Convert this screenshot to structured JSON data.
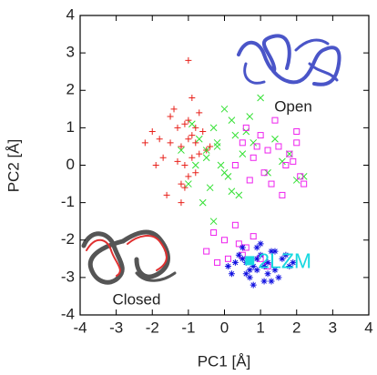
{
  "chart_data": {
    "type": "scatter",
    "xlabel": "PC1 [Å]",
    "ylabel": "PC2 [Å]",
    "xlim": [
      -4,
      4
    ],
    "ylim": [
      -4,
      4
    ],
    "xticks": [
      -4,
      -3,
      -2,
      -1,
      0,
      1,
      2,
      3,
      4
    ],
    "yticks": [
      -4,
      -3,
      -2,
      -1,
      0,
      1,
      2,
      3,
      4
    ],
    "series": [
      {
        "color": "#e8201a",
        "marker": "plus",
        "x": [
          -1.2,
          -0.9,
          -1.0,
          -0.7,
          -1.5,
          -1.3,
          -0.8,
          -1.1,
          -0.6,
          -1.4,
          -1.7,
          -0.9,
          -1.2,
          -1.0,
          -0.5,
          -1.8,
          -1.6,
          -0.8,
          -1.1,
          -1.3,
          -0.7,
          -1.0,
          -2.0,
          -1.9,
          -0.4,
          -1.2,
          -0.9,
          -1.0,
          -1.5,
          -1.1,
          -0.8,
          -2.2
        ],
        "values": [
          0.5,
          0.8,
          1.2,
          0.3,
          0.6,
          1.0,
          -0.2,
          0.0,
          0.9,
          1.5,
          0.2,
          1.8,
          -0.5,
          2.8,
          0.4,
          0.7,
          -0.8,
          0.6,
          1.1,
          0.1,
          1.4,
          -0.3,
          0.9,
          0.0,
          0.5,
          -1.0,
          0.2,
          0.7,
          1.3,
          -0.6,
          1.0,
          0.6
        ]
      },
      {
        "color": "#33e033",
        "marker": "cross",
        "x": [
          -0.5,
          -0.2,
          0.1,
          -0.8,
          -0.3,
          0.3,
          -1.0,
          0.0,
          0.5,
          -0.6,
          0.8,
          1.2,
          1.6,
          2.0,
          -0.4,
          -0.1,
          0.2,
          -0.7,
          1.0,
          1.8,
          2.2,
          -0.3,
          0.4,
          -1.2,
          0.6,
          -0.5,
          0.0,
          1.4,
          -0.9,
          0.2,
          -0.2,
          0.7
        ],
        "values": [
          0.2,
          0.5,
          -0.3,
          0.0,
          1.0,
          0.8,
          -0.5,
          1.5,
          0.3,
          -1.0,
          0.6,
          -0.2,
          0.1,
          -0.4,
          -0.6,
          0.0,
          1.2,
          0.7,
          1.8,
          0.3,
          -0.3,
          -1.5,
          -0.8,
          0.4,
          0.9,
          0.4,
          -0.2,
          0.7,
          1.1,
          -0.7,
          0.6,
          1.3
        ]
      },
      {
        "color": "#ee22ee",
        "marker": "square",
        "x": [
          0.5,
          0.8,
          1.0,
          1.2,
          1.5,
          1.8,
          2.0,
          2.1,
          0.3,
          0.6,
          1.1,
          1.4,
          1.9,
          2.2,
          0.9,
          1.6,
          1.3,
          0.7,
          2.0,
          1.7,
          -0.3,
          0.0,
          0.3,
          0.6,
          -0.5,
          0.1,
          0.4,
          0.8,
          -0.2,
          0.5,
          1.0,
          1.2
        ],
        "values": [
          0.6,
          0.2,
          0.8,
          0.4,
          0.5,
          0.3,
          0.9,
          -0.3,
          0.0,
          1.0,
          -0.2,
          1.2,
          0.1,
          -0.5,
          0.5,
          -0.8,
          -0.5,
          -0.4,
          0.6,
          0.0,
          -1.8,
          -2.0,
          -1.6,
          -2.2,
          -2.3,
          -2.5,
          -2.1,
          -1.9,
          -2.6,
          -2.4,
          -2.5,
          -2.7
        ]
      },
      {
        "color": "#1010e0",
        "marker": "star",
        "x": [
          0.5,
          0.8,
          1.0,
          1.2,
          0.6,
          0.9,
          1.4,
          1.6,
          0.3,
          0.7,
          1.1,
          1.3,
          0.4,
          0.9,
          1.8,
          0.2,
          1.5,
          1.0,
          0.6,
          1.2,
          0.8,
          1.7,
          0.1,
          1.3,
          0.5,
          1.9,
          0.9,
          1.1,
          0.7,
          1.4
        ],
        "values": [
          -2.5,
          -2.7,
          -2.4,
          -2.6,
          -2.9,
          -2.2,
          -2.8,
          -2.5,
          -2.6,
          -3.0,
          -3.1,
          -2.3,
          -2.4,
          -2.8,
          -2.7,
          -2.9,
          -3.0,
          -2.1,
          -2.6,
          -2.9,
          -3.2,
          -2.4,
          -2.7,
          -3.1,
          -2.2,
          -2.6,
          -2.5,
          -2.7,
          -2.8,
          -2.3
        ]
      }
    ],
    "annotations": [
      {
        "text": "Open"
      },
      {
        "text": "Closed"
      },
      {
        "text": "2LZM",
        "x": 0.7,
        "y": -2.55,
        "color": "#18d8e0"
      }
    ]
  }
}
